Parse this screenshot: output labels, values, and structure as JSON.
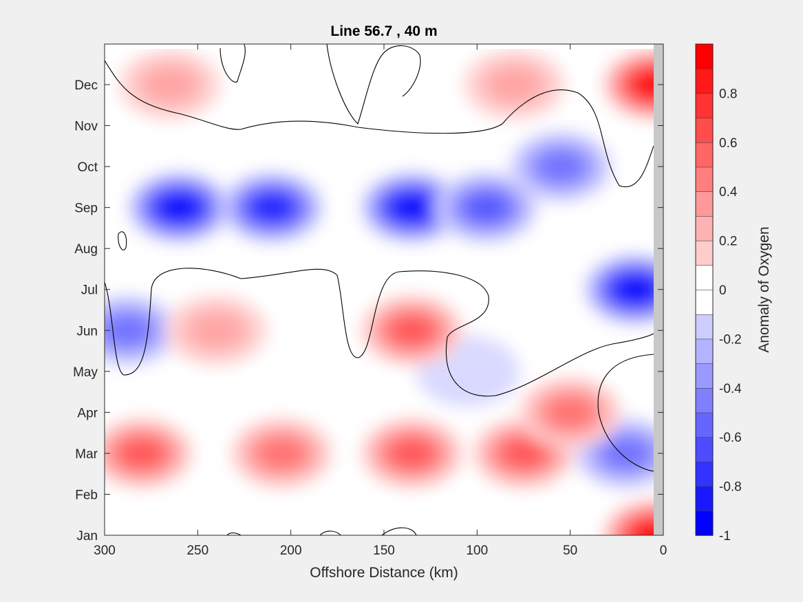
{
  "chart_data": {
    "type": "heatmap",
    "subtype": "filled-contour",
    "title": "Line 56.7 , 40 m",
    "xlabel": "Offshore Distance (km)",
    "ylabel": "",
    "colorbar_label": "Anomaly of Oxygen",
    "xlim": [
      300,
      0
    ],
    "x_direction": "reversed",
    "x_ticks": [
      "300",
      "250",
      "200",
      "150",
      "100",
      "50",
      "0"
    ],
    "y_ticks": [
      "Jan",
      "Feb",
      "Mar",
      "Apr",
      "May",
      "Jun",
      "Jul",
      "Aug",
      "Sep",
      "Oct",
      "Nov",
      "Dec"
    ],
    "colorbar_range": [
      -1,
      1
    ],
    "colorbar_step": 0.1,
    "colorbar_ticks": [
      "-1",
      "-0.8",
      "-0.6",
      "-0.4",
      "-0.2",
      "0",
      "0.2",
      "0.4",
      "0.6",
      "0.8"
    ],
    "colormap": "blue-white-red (diverging)",
    "colors": {
      "negative_max": "#0000ff",
      "zero": "#ffffff",
      "positive_max": "#ff0000",
      "no_data": "#c8c8c8",
      "contour": "#000000"
    },
    "contour_lines": [
      0
    ],
    "grid": false,
    "anomaly_fields": [
      {
        "x": 260,
        "y": "Sep",
        "value": -0.9
      },
      {
        "x": 210,
        "y": "Sep",
        "value": -0.75
      },
      {
        "x": 135,
        "y": "Sep",
        "value": -0.95
      },
      {
        "x": 95,
        "y": "Sep",
        "value": -0.6
      },
      {
        "x": 55,
        "y": "Oct",
        "value": -0.5
      },
      {
        "x": 15,
        "y": "Jul",
        "value": -0.85
      },
      {
        "x": 288,
        "y": "Jun",
        "value": -0.5
      },
      {
        "x": 20,
        "y": "Mar",
        "value": -0.5
      },
      {
        "x": 105,
        "y": "May",
        "value": -0.15
      },
      {
        "x": 5,
        "y": "Dec",
        "value": 0.95
      },
      {
        "x": 5,
        "y": "Jan",
        "value": 0.95
      },
      {
        "x": 280,
        "y": "Mar",
        "value": 0.55
      },
      {
        "x": 205,
        "y": "Mar",
        "value": 0.5
      },
      {
        "x": 135,
        "y": "Mar",
        "value": 0.55
      },
      {
        "x": 75,
        "y": "Mar",
        "value": 0.6
      },
      {
        "x": 135,
        "y": "Jun",
        "value": 0.55
      },
      {
        "x": 240,
        "y": "Jun",
        "value": 0.35
      },
      {
        "x": 50,
        "y": "Apr",
        "value": 0.45
      },
      {
        "x": 265,
        "y": "Dec",
        "value": 0.3
      },
      {
        "x": 80,
        "y": "Dec",
        "value": 0.3
      }
    ]
  }
}
